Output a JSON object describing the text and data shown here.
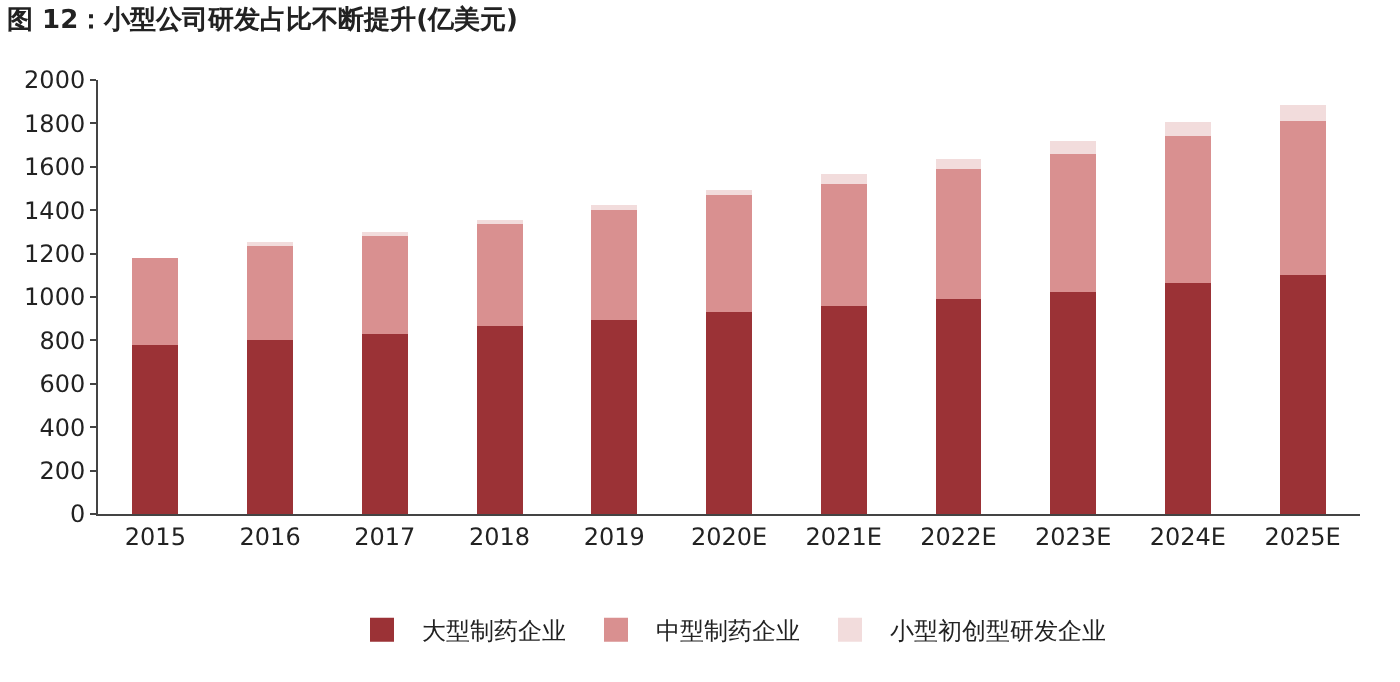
{
  "chart_data": {
    "type": "bar",
    "title": "图 12：小型公司研发占比不断提升(亿美元)",
    "categories": [
      "2015",
      "2016",
      "2017",
      "2018",
      "2019",
      "2020E",
      "2021E",
      "2022E",
      "2023E",
      "2024E",
      "2025E"
    ],
    "stacked": true,
    "series": [
      {
        "name": "大型制药企业",
        "color": "#9b3236",
        "values": [
          780,
          800,
          830,
          865,
          895,
          930,
          960,
          990,
          1025,
          1065,
          1100
        ]
      },
      {
        "name": "中型制药企业",
        "color": "#d99090",
        "values": [
          400,
          435,
          460,
          480,
          505,
          540,
          560,
          600,
          635,
          675,
          710
        ]
      },
      {
        "name": "小型初创型研发企业",
        "color": "#f2dcdc",
        "values": [
          null,
          10,
          8,
          12,
          25,
          25,
          45,
          45,
          60,
          65,
          75
        ]
      }
    ],
    "ylim": [
      0,
      2000
    ],
    "yticks": [
      0,
      200,
      400,
      600,
      800,
      1000,
      1200,
      1400,
      1600,
      1800,
      2000
    ],
    "grid": false,
    "legend": "bottom"
  }
}
